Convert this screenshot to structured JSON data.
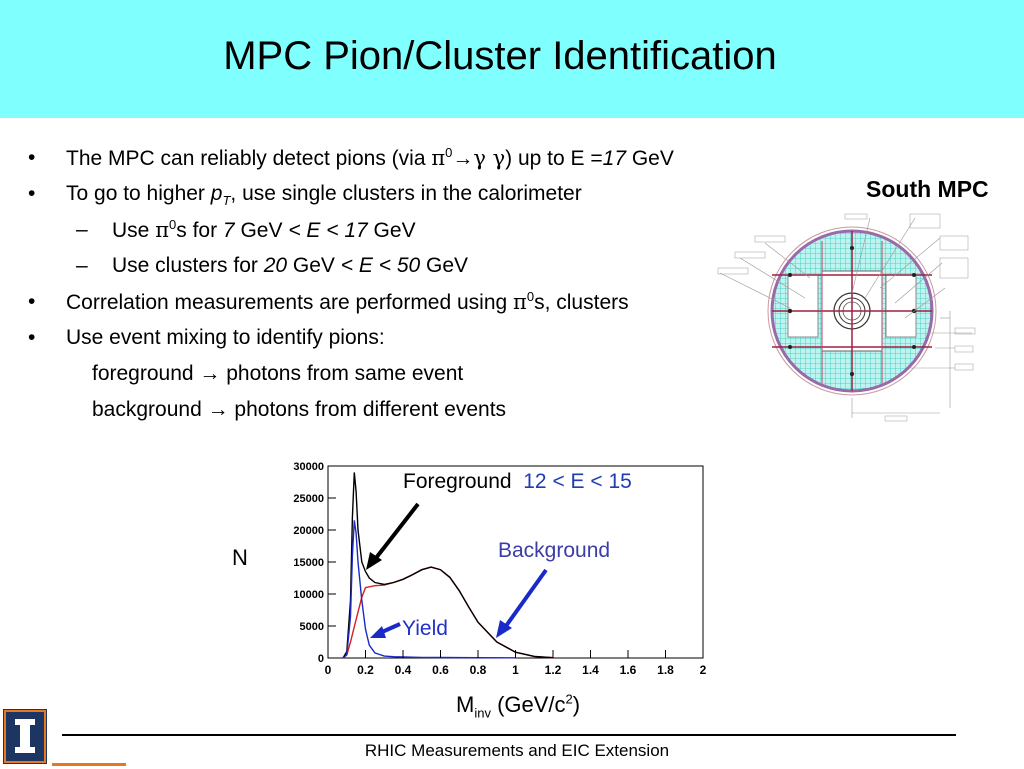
{
  "title": "MPC Pion/Cluster Identification",
  "bullet_char": "•",
  "dash_char": "–",
  "bullets": {
    "b1": {
      "a": "The MPC can reliably detect pions (via ",
      "pi": "π",
      "sup": "0",
      "arrow": "→",
      "gammas": "γ γ",
      "b": ") up to  E =",
      "val": "17",
      "c": " GeV"
    },
    "b2": {
      "a": "To go to higher ",
      "p": "p",
      "sub": "T",
      "b": ", use single clusters in the calorimeter"
    },
    "s1": {
      "a": "Use ",
      "pi": "π",
      "sup": "0",
      "b": "s for ",
      "v1": "7",
      "c": " GeV  ",
      "d": "< E < 17",
      "e": " GeV"
    },
    "s2": {
      "a": "Use clusters for ",
      "v1": "20",
      "c": " GeV  ",
      "d": "< E < 50",
      "e": " GeV"
    },
    "b3": {
      "a": "Correlation measurements are performed using ",
      "pi": "π",
      "sup": "0",
      "b": "s, clusters"
    },
    "b4": {
      "a": "Use event mixing to identify pions:"
    },
    "fg": {
      "a": "foreground ",
      "arrow": "→",
      "b": " photons from same event"
    },
    "bg": {
      "a": "background ",
      "arrow": "→",
      "b": " photons from different events"
    }
  },
  "detector": {
    "label": "South MPC"
  },
  "plot": {
    "foreground_label": "Foreground",
    "foreground_range": "12 < E < 15",
    "background_label": "Background",
    "yield_label": "Yield",
    "y_label": "N",
    "x_label_main": "M",
    "x_label_sub": "inv",
    "x_label_unit": " (GeV/c",
    "x_label_sup": "2",
    "x_label_end": ")",
    "y_ticks": [
      "30000",
      "25000",
      "20000",
      "15000",
      "10000",
      "5000",
      "0"
    ],
    "x_ticks": [
      "0",
      "0.2",
      "0.4",
      "0.6",
      "0.8",
      "1",
      "1.2",
      "1.4",
      "1.6",
      "1.8",
      "2"
    ]
  },
  "chart_data": {
    "type": "line",
    "xlabel": "Minv (GeV/c2)",
    "ylabel": "N",
    "xlim": [
      0,
      2
    ],
    "ylim": [
      0,
      30000
    ],
    "series": [
      {
        "name": "Foreground",
        "color": "#000000",
        "x": [
          0.08,
          0.1,
          0.12,
          0.13,
          0.14,
          0.15,
          0.16,
          0.18,
          0.2,
          0.22,
          0.25,
          0.3,
          0.35,
          0.4,
          0.45,
          0.5,
          0.55,
          0.6,
          0.65,
          0.7,
          0.75,
          0.8,
          0.9,
          1.0,
          1.1,
          1.2
        ],
        "y": [
          0,
          1000,
          9000,
          22000,
          29000,
          26000,
          20000,
          15000,
          13500,
          12500,
          11800,
          11500,
          11800,
          12300,
          13000,
          13800,
          14200,
          13800,
          12600,
          10500,
          8000,
          5600,
          2500,
          900,
          250,
          50
        ]
      },
      {
        "name": "Background",
        "color": "#d81e1e",
        "x": [
          0.08,
          0.1,
          0.12,
          0.15,
          0.18,
          0.2,
          0.25,
          0.3,
          0.35,
          0.4,
          0.45,
          0.5,
          0.55,
          0.6,
          0.65,
          0.7,
          0.75,
          0.8,
          0.9,
          1.0,
          1.1,
          1.2
        ],
        "y": [
          0,
          500,
          2500,
          6000,
          9500,
          11000,
          11300,
          11400,
          11800,
          12300,
          13000,
          13800,
          14200,
          13800,
          12600,
          10500,
          8000,
          5600,
          2500,
          900,
          250,
          50
        ]
      },
      {
        "name": "Yield",
        "color": "#1a2ac8",
        "x": [
          0.08,
          0.1,
          0.12,
          0.13,
          0.14,
          0.15,
          0.16,
          0.18,
          0.2,
          0.22,
          0.25,
          0.3,
          0.35,
          0.4,
          0.5,
          0.6,
          0.8,
          1.0
        ],
        "y": [
          0,
          500,
          6500,
          16000,
          21500,
          19500,
          15000,
          9000,
          4500,
          2000,
          800,
          300,
          200,
          150,
          100,
          80,
          50,
          30
        ]
      }
    ]
  },
  "footer": "RHIC Measurements and EIC Extension"
}
